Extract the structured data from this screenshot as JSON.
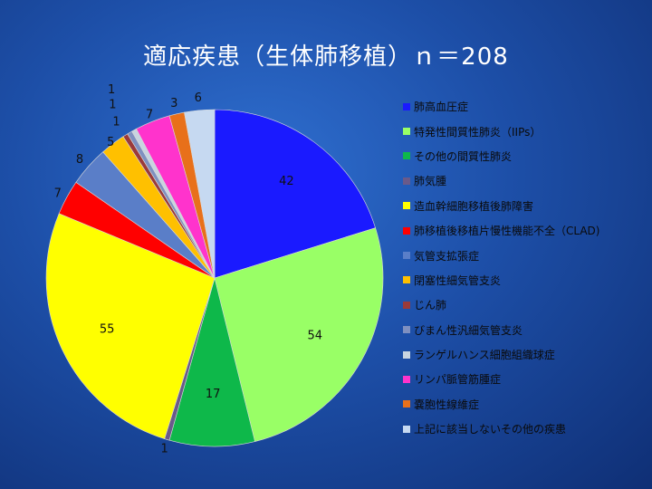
{
  "chart_data": {
    "type": "pie",
    "title": "適応疾患（生体肺移植）ｎ＝208",
    "legend_position": "right",
    "slices": [
      {
        "label": "肺高血圧症",
        "value": 42,
        "color": "#1a1aff"
      },
      {
        "label": "特発性間質性肺炎（IIPs）",
        "value": 54,
        "color": "#99ff66"
      },
      {
        "label": "その他の間質性肺炎",
        "value": 17,
        "color": "#0eb84a"
      },
      {
        "label": "肺気腫",
        "value": 1,
        "color": "#6a5a8a"
      },
      {
        "label": "造血幹細胞移植後肺障害",
        "value": 55,
        "color": "#ffff00"
      },
      {
        "label": "肺移植後移植片慢性機能不全（CLAD)",
        "value": 7,
        "color": "#ff0000"
      },
      {
        "label": "気管支拡張症",
        "value": 8,
        "color": "#5a7ec8"
      },
      {
        "label": "閉塞性細気管支炎",
        "value": 5,
        "color": "#ffc000"
      },
      {
        "label": "じん肺",
        "value": 1,
        "color": "#9b3a3a"
      },
      {
        "label": "びまん性汎細気管支炎",
        "value": 1,
        "color": "#7f90c0"
      },
      {
        "label": "ランゲルハンス細胞組織球症",
        "value": 1,
        "color": "#c8d4e0"
      },
      {
        "label": "リンパ脈管筋腫症",
        "value": 7,
        "color": "#ff33cc"
      },
      {
        "label": "嚢胞性線維症",
        "value": 3,
        "color": "#e8701a"
      },
      {
        "label": "上記に該当しないその他の疾患",
        "value": 6,
        "color": "#c6d9f1"
      }
    ]
  }
}
